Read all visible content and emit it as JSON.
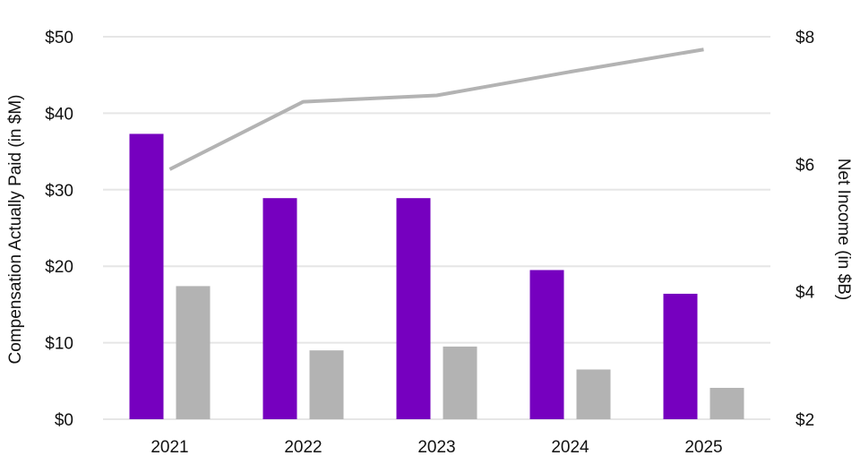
{
  "chart_data": {
    "type": "bar",
    "categories": [
      "2021",
      "2022",
      "2023",
      "2024",
      "2025"
    ],
    "y_left": {
      "label": "Compensation Actually Paid (in $M)",
      "range": [
        0,
        50
      ],
      "ticks": [
        0,
        10,
        20,
        30,
        40,
        50
      ],
      "tick_labels": [
        "$0",
        "$10",
        "$20",
        "$30",
        "$40",
        "$50"
      ]
    },
    "y_right": {
      "label": "Net Income (in $B)",
      "range": [
        2,
        8
      ],
      "ticks": [
        2,
        4,
        6,
        8
      ],
      "tick_labels": [
        "$2",
        "$4",
        "$6",
        "$8"
      ]
    },
    "series": [
      {
        "type": "bar",
        "axis": "left",
        "color": "#7600bf",
        "values": [
          37.3,
          28.9,
          28.9,
          19.5,
          16.4
        ]
      },
      {
        "type": "bar",
        "axis": "left",
        "color": "#b3b3b3",
        "values": [
          17.4,
          9.0,
          9.5,
          6.5,
          4.1
        ]
      },
      {
        "type": "line",
        "axis": "right",
        "color": "#b3b3b3",
        "values": [
          5.92,
          6.98,
          7.08,
          7.45,
          7.8
        ]
      }
    ],
    "grid": true,
    "legend": "none"
  }
}
